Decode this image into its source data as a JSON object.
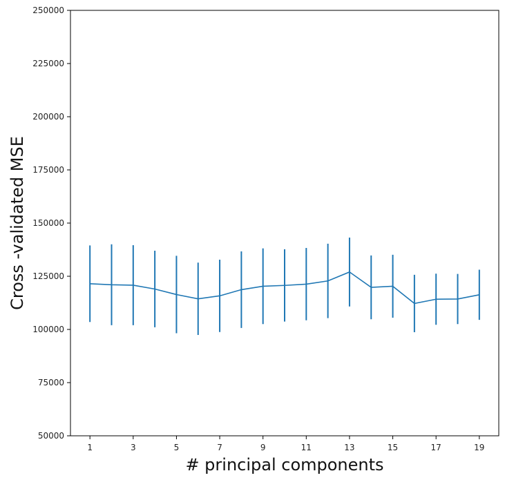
{
  "chart_data": {
    "type": "line",
    "title": "",
    "xlabel": "# principal components",
    "ylabel": "Cross -validated MSE",
    "xlim": [
      0.1,
      19.9
    ],
    "ylim": [
      50000,
      250000
    ],
    "x_ticks": [
      1,
      3,
      5,
      7,
      9,
      11,
      13,
      15,
      17,
      19
    ],
    "y_ticks": [
      50000,
      75000,
      100000,
      125000,
      150000,
      175000,
      200000,
      225000,
      250000
    ],
    "grid": false,
    "color": "#1f77b4",
    "series": [
      {
        "x": [
          1,
          2,
          3,
          4,
          5,
          6,
          7,
          8,
          9,
          10,
          11,
          12,
          13,
          14,
          15,
          16,
          17,
          18,
          19
        ],
        "values": [
          121500,
          121000,
          120800,
          119000,
          116400,
          114400,
          115800,
          118700,
          120300,
          120700,
          121300,
          122800,
          127000,
          119800,
          120300,
          112200,
          114200,
          114300,
          116300
        ],
        "error": [
          18000,
          19000,
          18800,
          18000,
          18200,
          17000,
          17000,
          18000,
          17800,
          17000,
          17000,
          17500,
          16200,
          15000,
          14800,
          13500,
          12000,
          11800,
          11800
        ]
      }
    ]
  }
}
